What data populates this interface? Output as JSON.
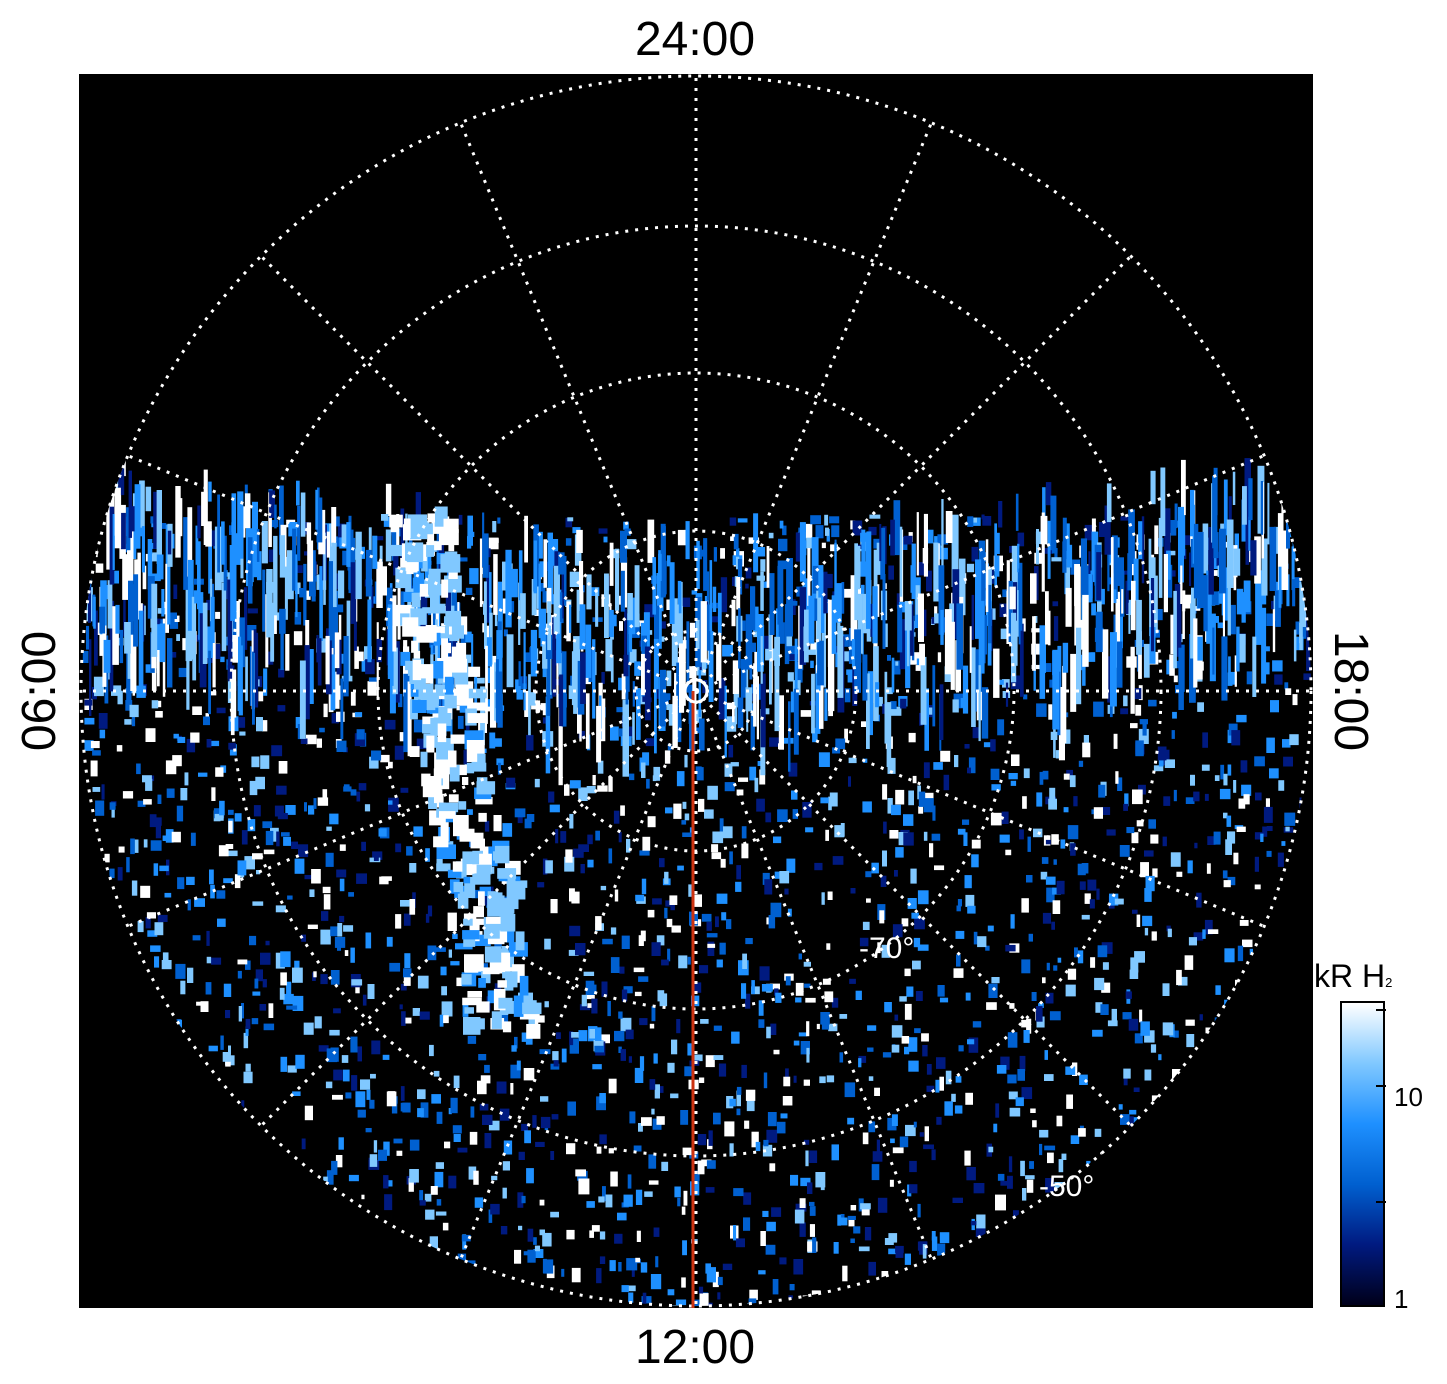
{
  "chart_data": {
    "type": "heatmap",
    "projection": "polar (south pole, local time)",
    "local_time_labels": {
      "top": "24:00",
      "bottom": "12:00",
      "left": "06:00",
      "right": "18:00"
    },
    "latitude_labels": [
      "-70°",
      "-50°"
    ],
    "latitude_circles_deg": [
      -80,
      -70,
      -60,
      -50
    ],
    "grid": true,
    "meridian_spacing_hours": 1.5,
    "colorbar": {
      "title": "kR H",
      "title_subscript": "2",
      "scale": "log",
      "range": [
        1,
        30
      ],
      "tick_labels": [
        "10",
        "1"
      ],
      "tick_values": [
        10,
        1
      ],
      "colors": [
        "#00001a",
        "#001a80",
        "#0060d0",
        "#1e90ff",
        "#80c8ff",
        "#ffffff"
      ]
    },
    "marker": {
      "type": "line",
      "color": "#cc3311",
      "from_local_time": "12:00",
      "note": ""
    }
  }
}
